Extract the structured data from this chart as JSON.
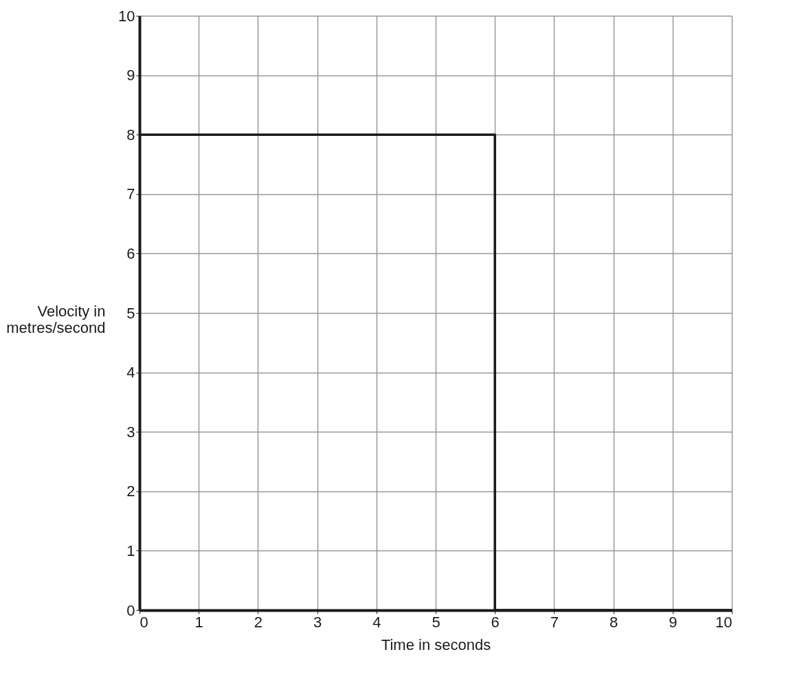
{
  "chart_data": {
    "type": "line",
    "xlabel": "Time in seconds",
    "ylabel": "Velocity in metres/second",
    "x": [
      0,
      6,
      6,
      10
    ],
    "series": [
      {
        "color": "#1a1a1a",
        "values": [
          8,
          8,
          0,
          0
        ]
      }
    ],
    "xlim": [
      0,
      10
    ],
    "ylim": [
      0,
      10
    ],
    "xticks": [
      0,
      1,
      2,
      3,
      4,
      5,
      6,
      7,
      8,
      9,
      10
    ],
    "yticks": [
      0,
      1,
      2,
      3,
      4,
      5,
      6,
      7,
      8,
      9,
      10
    ],
    "grid": true,
    "marker": "none",
    "line_style": "solid"
  }
}
